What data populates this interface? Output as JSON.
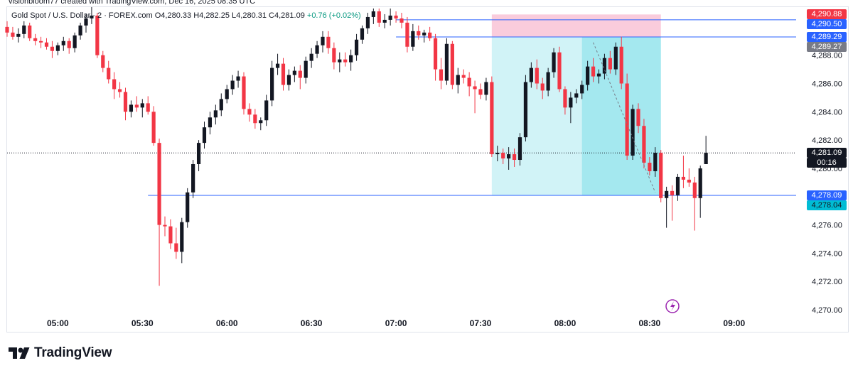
{
  "attribution": "visionbloom77 created with TradingView.com, Dec 16, 2025 08:35 UTC",
  "header": {
    "symbol": "Gold Spot / U.S. Dollar · 2 · FOREX.com",
    "open_label": "O",
    "open": "4,280.33",
    "high_label": "H",
    "high": "4,282.25",
    "low_label": "L",
    "low": "4,280.31",
    "close_label": "C",
    "close": "4,281.09",
    "change": "+0.76 (+0.02%)"
  },
  "colors": {
    "up": "#131722",
    "down": "#f23645",
    "line_blue": "#2962ff",
    "target_zone": "#b2ebf2",
    "stop_zone": "#f8bbd0",
    "text": "#131722",
    "axis_text": "#131722"
  },
  "price_tags": [
    {
      "label": "4,290.88",
      "bg": "#f23645",
      "fg": "#ffffff"
    },
    {
      "label": "4,290.50",
      "bg": "#2962ff",
      "fg": "#ffffff"
    },
    {
      "label": "4,289.29",
      "bg": "#2962ff",
      "fg": "#ffffff"
    },
    {
      "label": "4,289.27",
      "bg": "#787b86",
      "fg": "#ffffff"
    },
    {
      "label": "4,281.09",
      "bg": "#131722",
      "fg": "#ffffff"
    },
    {
      "label": "00:16",
      "bg": "#131722",
      "fg": "#ffffff"
    },
    {
      "label": "4,278.09",
      "bg": "#2962ff",
      "fg": "#ffffff"
    },
    {
      "label": "4,278.04",
      "bg": "#00bcd4",
      "fg": "#131722"
    }
  ],
  "chart_data": {
    "type": "candlestick",
    "interval": "2",
    "x_ticks": [
      "05:00",
      "05:30",
      "06:00",
      "06:30",
      "07:00",
      "07:30",
      "08:00",
      "08:30",
      "09:00"
    ],
    "y_ticks": [
      "4,270.00",
      "4,272.00",
      "4,274.00",
      "4,276.00",
      "4,278.00",
      "4,280.00",
      "4,282.00",
      "4,284.00",
      "4,286.00",
      "4,288.00"
    ],
    "ylim": [
      4269.4,
      4291.4
    ],
    "x_start": "04:42",
    "x_end": "09:22",
    "candles": [
      {
        "t": "04:42",
        "o": 4290.0,
        "h": 4290.4,
        "l": 4289.3,
        "c": 4289.6
      },
      {
        "t": "04:44",
        "o": 4289.6,
        "h": 4290.0,
        "l": 4289.1,
        "c": 4289.3
      },
      {
        "t": "04:46",
        "o": 4289.3,
        "h": 4289.9,
        "l": 4288.9,
        "c": 4289.5
      },
      {
        "t": "04:48",
        "o": 4289.5,
        "h": 4290.4,
        "l": 4289.2,
        "c": 4290.1
      },
      {
        "t": "04:50",
        "o": 4290.1,
        "h": 4290.3,
        "l": 4289.0,
        "c": 4289.2
      },
      {
        "t": "04:52",
        "o": 4289.2,
        "h": 4289.5,
        "l": 4288.7,
        "c": 4289.0
      },
      {
        "t": "04:54",
        "o": 4289.0,
        "h": 4289.3,
        "l": 4288.5,
        "c": 4288.9
      },
      {
        "t": "04:56",
        "o": 4288.9,
        "h": 4289.2,
        "l": 4288.4,
        "c": 4288.6
      },
      {
        "t": "04:58",
        "o": 4288.6,
        "h": 4289.0,
        "l": 4287.8,
        "c": 4288.3
      },
      {
        "t": "05:00",
        "o": 4288.3,
        "h": 4288.9,
        "l": 4288.0,
        "c": 4288.7
      },
      {
        "t": "05:02",
        "o": 4288.7,
        "h": 4289.3,
        "l": 4288.3,
        "c": 4289.0
      },
      {
        "t": "05:04",
        "o": 4289.0,
        "h": 4289.2,
        "l": 4288.1,
        "c": 4288.5
      },
      {
        "t": "05:06",
        "o": 4288.5,
        "h": 4289.6,
        "l": 4288.2,
        "c": 4289.4
      },
      {
        "t": "05:08",
        "o": 4289.4,
        "h": 4290.3,
        "l": 4289.1,
        "c": 4290.1
      },
      {
        "t": "05:10",
        "o": 4290.1,
        "h": 4290.9,
        "l": 4289.6,
        "c": 4290.6
      },
      {
        "t": "05:12",
        "o": 4290.6,
        "h": 4291.4,
        "l": 4290.2,
        "c": 4290.8
      },
      {
        "t": "05:14",
        "o": 4290.8,
        "h": 4291.0,
        "l": 4287.8,
        "c": 4288.0
      },
      {
        "t": "05:16",
        "o": 4288.0,
        "h": 4288.3,
        "l": 4286.8,
        "c": 4287.1
      },
      {
        "t": "05:18",
        "o": 4287.1,
        "h": 4287.6,
        "l": 4286.0,
        "c": 4286.3
      },
      {
        "t": "05:20",
        "o": 4286.3,
        "h": 4286.8,
        "l": 4284.9,
        "c": 4285.6
      },
      {
        "t": "05:22",
        "o": 4285.6,
        "h": 4286.1,
        "l": 4285.0,
        "c": 4285.4
      },
      {
        "t": "05:24",
        "o": 4285.4,
        "h": 4285.7,
        "l": 4283.4,
        "c": 4284.0
      },
      {
        "t": "05:26",
        "o": 4284.0,
        "h": 4284.8,
        "l": 4283.6,
        "c": 4284.5
      },
      {
        "t": "05:28",
        "o": 4284.5,
        "h": 4285.1,
        "l": 4284.0,
        "c": 4284.3
      },
      {
        "t": "05:30",
        "o": 4284.3,
        "h": 4284.9,
        "l": 4283.6,
        "c": 4284.6
      },
      {
        "t": "05:32",
        "o": 4284.6,
        "h": 4285.1,
        "l": 4283.8,
        "c": 4284.0
      },
      {
        "t": "05:34",
        "o": 4284.0,
        "h": 4284.4,
        "l": 4281.6,
        "c": 4281.8
      },
      {
        "t": "05:36",
        "o": 4281.8,
        "h": 4282.1,
        "l": 4271.7,
        "c": 4276.0
      },
      {
        "t": "05:38",
        "o": 4276.0,
        "h": 4276.6,
        "l": 4275.2,
        "c": 4275.9
      },
      {
        "t": "05:40",
        "o": 4275.9,
        "h": 4276.4,
        "l": 4274.3,
        "c": 4274.7
      },
      {
        "t": "05:42",
        "o": 4274.7,
        "h": 4275.8,
        "l": 4273.6,
        "c": 4274.1
      },
      {
        "t": "05:44",
        "o": 4274.1,
        "h": 4276.5,
        "l": 4273.3,
        "c": 4276.2
      },
      {
        "t": "05:46",
        "o": 4276.2,
        "h": 4278.6,
        "l": 4275.8,
        "c": 4278.3
      },
      {
        "t": "05:48",
        "o": 4278.3,
        "h": 4280.6,
        "l": 4277.9,
        "c": 4280.3
      },
      {
        "t": "05:50",
        "o": 4280.3,
        "h": 4282.0,
        "l": 4279.8,
        "c": 4281.8
      },
      {
        "t": "05:52",
        "o": 4281.8,
        "h": 4283.3,
        "l": 4281.4,
        "c": 4282.9
      },
      {
        "t": "05:54",
        "o": 4282.9,
        "h": 4284.0,
        "l": 4282.4,
        "c": 4283.6
      },
      {
        "t": "05:56",
        "o": 4283.6,
        "h": 4284.5,
        "l": 4283.1,
        "c": 4284.1
      },
      {
        "t": "05:58",
        "o": 4284.1,
        "h": 4285.3,
        "l": 4283.7,
        "c": 4284.9
      },
      {
        "t": "06:00",
        "o": 4284.9,
        "h": 4285.9,
        "l": 4284.6,
        "c": 4285.6
      },
      {
        "t": "06:02",
        "o": 4285.6,
        "h": 4286.6,
        "l": 4285.2,
        "c": 4286.2
      },
      {
        "t": "06:04",
        "o": 4286.2,
        "h": 4286.9,
        "l": 4285.7,
        "c": 4286.5
      },
      {
        "t": "06:06",
        "o": 4286.5,
        "h": 4286.8,
        "l": 4283.8,
        "c": 4284.2
      },
      {
        "t": "06:08",
        "o": 4284.2,
        "h": 4284.6,
        "l": 4283.3,
        "c": 4283.8
      },
      {
        "t": "06:10",
        "o": 4283.8,
        "h": 4284.2,
        "l": 4282.8,
        "c": 4283.2
      },
      {
        "t": "06:12",
        "o": 4283.2,
        "h": 4283.6,
        "l": 4282.7,
        "c": 4283.4
      },
      {
        "t": "06:14",
        "o": 4283.4,
        "h": 4285.2,
        "l": 4283.0,
        "c": 4284.8
      },
      {
        "t": "06:16",
        "o": 4284.8,
        "h": 4287.6,
        "l": 4284.4,
        "c": 4287.1
      },
      {
        "t": "06:18",
        "o": 4287.1,
        "h": 4288.1,
        "l": 4286.6,
        "c": 4287.4
      },
      {
        "t": "06:20",
        "o": 4287.4,
        "h": 4287.8,
        "l": 4285.5,
        "c": 4285.9
      },
      {
        "t": "06:22",
        "o": 4285.9,
        "h": 4287.0,
        "l": 4285.5,
        "c": 4286.6
      },
      {
        "t": "06:24",
        "o": 4286.6,
        "h": 4287.2,
        "l": 4286.1,
        "c": 4286.9
      },
      {
        "t": "06:26",
        "o": 4286.9,
        "h": 4287.3,
        "l": 4285.6,
        "c": 4286.4
      },
      {
        "t": "06:28",
        "o": 4286.4,
        "h": 4287.9,
        "l": 4286.0,
        "c": 4287.6
      },
      {
        "t": "06:30",
        "o": 4287.6,
        "h": 4288.5,
        "l": 4287.1,
        "c": 4288.1
      },
      {
        "t": "06:32",
        "o": 4288.1,
        "h": 4289.0,
        "l": 4287.8,
        "c": 4288.7
      },
      {
        "t": "06:34",
        "o": 4288.7,
        "h": 4289.7,
        "l": 4288.2,
        "c": 4289.3
      },
      {
        "t": "06:36",
        "o": 4289.3,
        "h": 4289.7,
        "l": 4288.1,
        "c": 4288.5
      },
      {
        "t": "06:38",
        "o": 4288.5,
        "h": 4288.9,
        "l": 4287.0,
        "c": 4287.5
      },
      {
        "t": "06:40",
        "o": 4287.5,
        "h": 4288.2,
        "l": 4286.8,
        "c": 4287.7
      },
      {
        "t": "06:42",
        "o": 4287.7,
        "h": 4288.2,
        "l": 4287.2,
        "c": 4287.5
      },
      {
        "t": "06:44",
        "o": 4287.5,
        "h": 4288.4,
        "l": 4286.9,
        "c": 4288.0
      },
      {
        "t": "06:46",
        "o": 4288.0,
        "h": 4289.5,
        "l": 4287.6,
        "c": 4289.1
      },
      {
        "t": "06:48",
        "o": 4289.1,
        "h": 4290.1,
        "l": 4288.8,
        "c": 4289.9
      },
      {
        "t": "06:50",
        "o": 4289.9,
        "h": 4291.0,
        "l": 4289.5,
        "c": 4290.7
      },
      {
        "t": "06:52",
        "o": 4290.7,
        "h": 4291.3,
        "l": 4290.2,
        "c": 4291.1
      },
      {
        "t": "06:54",
        "o": 4291.1,
        "h": 4291.3,
        "l": 4290.0,
        "c": 4290.3
      },
      {
        "t": "06:56",
        "o": 4290.3,
        "h": 4290.9,
        "l": 4289.9,
        "c": 4290.5
      },
      {
        "t": "06:58",
        "o": 4290.5,
        "h": 4291.3,
        "l": 4290.1,
        "c": 4290.8
      },
      {
        "t": "07:00",
        "o": 4290.8,
        "h": 4291.1,
        "l": 4290.3,
        "c": 4290.6
      },
      {
        "t": "07:02",
        "o": 4290.6,
        "h": 4291.0,
        "l": 4289.9,
        "c": 4290.3
      },
      {
        "t": "07:04",
        "o": 4290.3,
        "h": 4290.7,
        "l": 4288.2,
        "c": 4288.6
      },
      {
        "t": "07:06",
        "o": 4288.6,
        "h": 4290.2,
        "l": 4288.3,
        "c": 4289.7
      },
      {
        "t": "07:08",
        "o": 4289.7,
        "h": 4290.1,
        "l": 4289.1,
        "c": 4289.4
      },
      {
        "t": "07:10",
        "o": 4289.4,
        "h": 4289.8,
        "l": 4288.9,
        "c": 4289.6
      },
      {
        "t": "07:12",
        "o": 4289.6,
        "h": 4290.0,
        "l": 4289.0,
        "c": 4289.2
      },
      {
        "t": "07:14",
        "o": 4289.2,
        "h": 4289.5,
        "l": 4286.2,
        "c": 4287.0
      },
      {
        "t": "07:16",
        "o": 4287.0,
        "h": 4287.8,
        "l": 4285.6,
        "c": 4286.2
      },
      {
        "t": "07:18",
        "o": 4286.2,
        "h": 4289.2,
        "l": 4285.9,
        "c": 4288.8
      },
      {
        "t": "07:20",
        "o": 4288.8,
        "h": 4289.0,
        "l": 4285.6,
        "c": 4285.9
      },
      {
        "t": "07:22",
        "o": 4285.9,
        "h": 4287.1,
        "l": 4285.3,
        "c": 4286.6
      },
      {
        "t": "07:24",
        "o": 4286.6,
        "h": 4287.0,
        "l": 4286.0,
        "c": 4286.4
      },
      {
        "t": "07:26",
        "o": 4286.4,
        "h": 4286.8,
        "l": 4285.1,
        "c": 4285.8
      },
      {
        "t": "07:28",
        "o": 4285.8,
        "h": 4286.2,
        "l": 4283.9,
        "c": 4285.6
      },
      {
        "t": "07:30",
        "o": 4285.6,
        "h": 4286.0,
        "l": 4284.9,
        "c": 4285.2
      },
      {
        "t": "07:32",
        "o": 4285.2,
        "h": 4286.4,
        "l": 4284.8,
        "c": 4286.1
      },
      {
        "t": "07:34",
        "o": 4286.1,
        "h": 4286.5,
        "l": 4280.8,
        "c": 4281.0
      },
      {
        "t": "07:36",
        "o": 4281.0,
        "h": 4281.6,
        "l": 4280.5,
        "c": 4281.1
      },
      {
        "t": "07:38",
        "o": 4281.1,
        "h": 4281.4,
        "l": 4280.3,
        "c": 4280.7
      },
      {
        "t": "07:40",
        "o": 4280.7,
        "h": 4281.5,
        "l": 4279.9,
        "c": 4281.0
      },
      {
        "t": "07:42",
        "o": 4281.0,
        "h": 4281.4,
        "l": 4280.1,
        "c": 4280.6
      },
      {
        "t": "07:44",
        "o": 4280.6,
        "h": 4282.5,
        "l": 4280.2,
        "c": 4282.2
      },
      {
        "t": "07:46",
        "o": 4282.2,
        "h": 4286.6,
        "l": 4281.9,
        "c": 4286.1
      },
      {
        "t": "07:48",
        "o": 4286.1,
        "h": 4287.5,
        "l": 4285.7,
        "c": 4287.1
      },
      {
        "t": "07:50",
        "o": 4287.1,
        "h": 4287.7,
        "l": 4285.6,
        "c": 4286.0
      },
      {
        "t": "07:52",
        "o": 4286.0,
        "h": 4286.4,
        "l": 4284.9,
        "c": 4285.5
      },
      {
        "t": "07:54",
        "o": 4285.5,
        "h": 4287.1,
        "l": 4285.1,
        "c": 4286.8
      },
      {
        "t": "07:56",
        "o": 4286.8,
        "h": 4288.5,
        "l": 4286.4,
        "c": 4288.2
      },
      {
        "t": "07:58",
        "o": 4288.2,
        "h": 4288.6,
        "l": 4285.4,
        "c": 4285.6
      },
      {
        "t": "08:00",
        "o": 4285.6,
        "h": 4285.8,
        "l": 4283.8,
        "c": 4284.3
      },
      {
        "t": "08:02",
        "o": 4284.3,
        "h": 4285.4,
        "l": 4283.2,
        "c": 4285.0
      },
      {
        "t": "08:04",
        "o": 4285.0,
        "h": 4285.6,
        "l": 4284.6,
        "c": 4285.3
      },
      {
        "t": "08:06",
        "o": 4285.3,
        "h": 4286.2,
        "l": 4284.9,
        "c": 4285.9
      },
      {
        "t": "08:08",
        "o": 4285.9,
        "h": 4287.6,
        "l": 4285.5,
        "c": 4287.2
      },
      {
        "t": "08:10",
        "o": 4287.2,
        "h": 4287.8,
        "l": 4286.1,
        "c": 4286.5
      },
      {
        "t": "08:12",
        "o": 4286.5,
        "h": 4287.0,
        "l": 4286.0,
        "c": 4286.7
      },
      {
        "t": "08:14",
        "o": 4286.7,
        "h": 4288.1,
        "l": 4286.3,
        "c": 4287.8
      },
      {
        "t": "08:16",
        "o": 4287.8,
        "h": 4288.3,
        "l": 4286.7,
        "c": 4287.0
      },
      {
        "t": "08:18",
        "o": 4287.0,
        "h": 4288.9,
        "l": 4286.6,
        "c": 4288.6
      },
      {
        "t": "08:20",
        "o": 4288.6,
        "h": 4289.3,
        "l": 4285.6,
        "c": 4286.0
      },
      {
        "t": "08:22",
        "o": 4286.0,
        "h": 4286.7,
        "l": 4280.6,
        "c": 4280.9
      },
      {
        "t": "08:24",
        "o": 4280.9,
        "h": 4284.5,
        "l": 4280.6,
        "c": 4284.2
      },
      {
        "t": "08:26",
        "o": 4284.2,
        "h": 4284.6,
        "l": 4282.5,
        "c": 4283.0
      },
      {
        "t": "08:28",
        "o": 4283.0,
        "h": 4283.5,
        "l": 4280.0,
        "c": 4280.4
      },
      {
        "t": "08:30",
        "o": 4280.4,
        "h": 4280.8,
        "l": 4279.5,
        "c": 4279.8
      },
      {
        "t": "08:32",
        "o": 4279.8,
        "h": 4281.5,
        "l": 4279.4,
        "c": 4281.1
      },
      {
        "t": "08:34",
        "o": 4281.1,
        "h": 4281.3,
        "l": 4277.6,
        "c": 4277.9
      },
      {
        "t": "08:36",
        "o": 4277.9,
        "h": 4278.7,
        "l": 4275.8,
        "c": 4278.4
      },
      {
        "t": "08:38",
        "o": 4278.4,
        "h": 4278.8,
        "l": 4276.3,
        "c": 4278.1
      },
      {
        "t": "08:40",
        "o": 4278.1,
        "h": 4279.6,
        "l": 4277.7,
        "c": 4279.4
      },
      {
        "t": "08:42",
        "o": 4279.4,
        "h": 4280.9,
        "l": 4278.6,
        "c": 4279.2
      },
      {
        "t": "08:44",
        "o": 4279.2,
        "h": 4280.0,
        "l": 4278.7,
        "c": 4279.0
      },
      {
        "t": "08:46",
        "o": 4279.0,
        "h": 4279.4,
        "l": 4275.6,
        "c": 4277.9
      },
      {
        "t": "08:48",
        "o": 4277.9,
        "h": 4280.2,
        "l": 4276.5,
        "c": 4280.0
      },
      {
        "t": "08:50",
        "o": 4280.3,
        "h": 4282.3,
        "l": 4280.3,
        "c": 4281.1
      }
    ],
    "horizontal_lines": [
      {
        "price": 4290.5,
        "from": "07:00",
        "to": "09:22"
      },
      {
        "price": 4289.29,
        "from": "07:00",
        "to": "09:22"
      },
      {
        "price": 4278.09,
        "from": "05:32",
        "to": "09:22"
      }
    ],
    "current_price_line": 4281.09,
    "position": {
      "entry": 4289.29,
      "stop": 4290.88,
      "target": 4278.09,
      "from": "07:34",
      "to": "08:34",
      "filled_to": "08:06"
    },
    "trend_dash": [
      {
        "t": "08:10",
        "p": 4288.9
      },
      {
        "t": "08:32",
        "p": 4278.3
      }
    ]
  }
}
